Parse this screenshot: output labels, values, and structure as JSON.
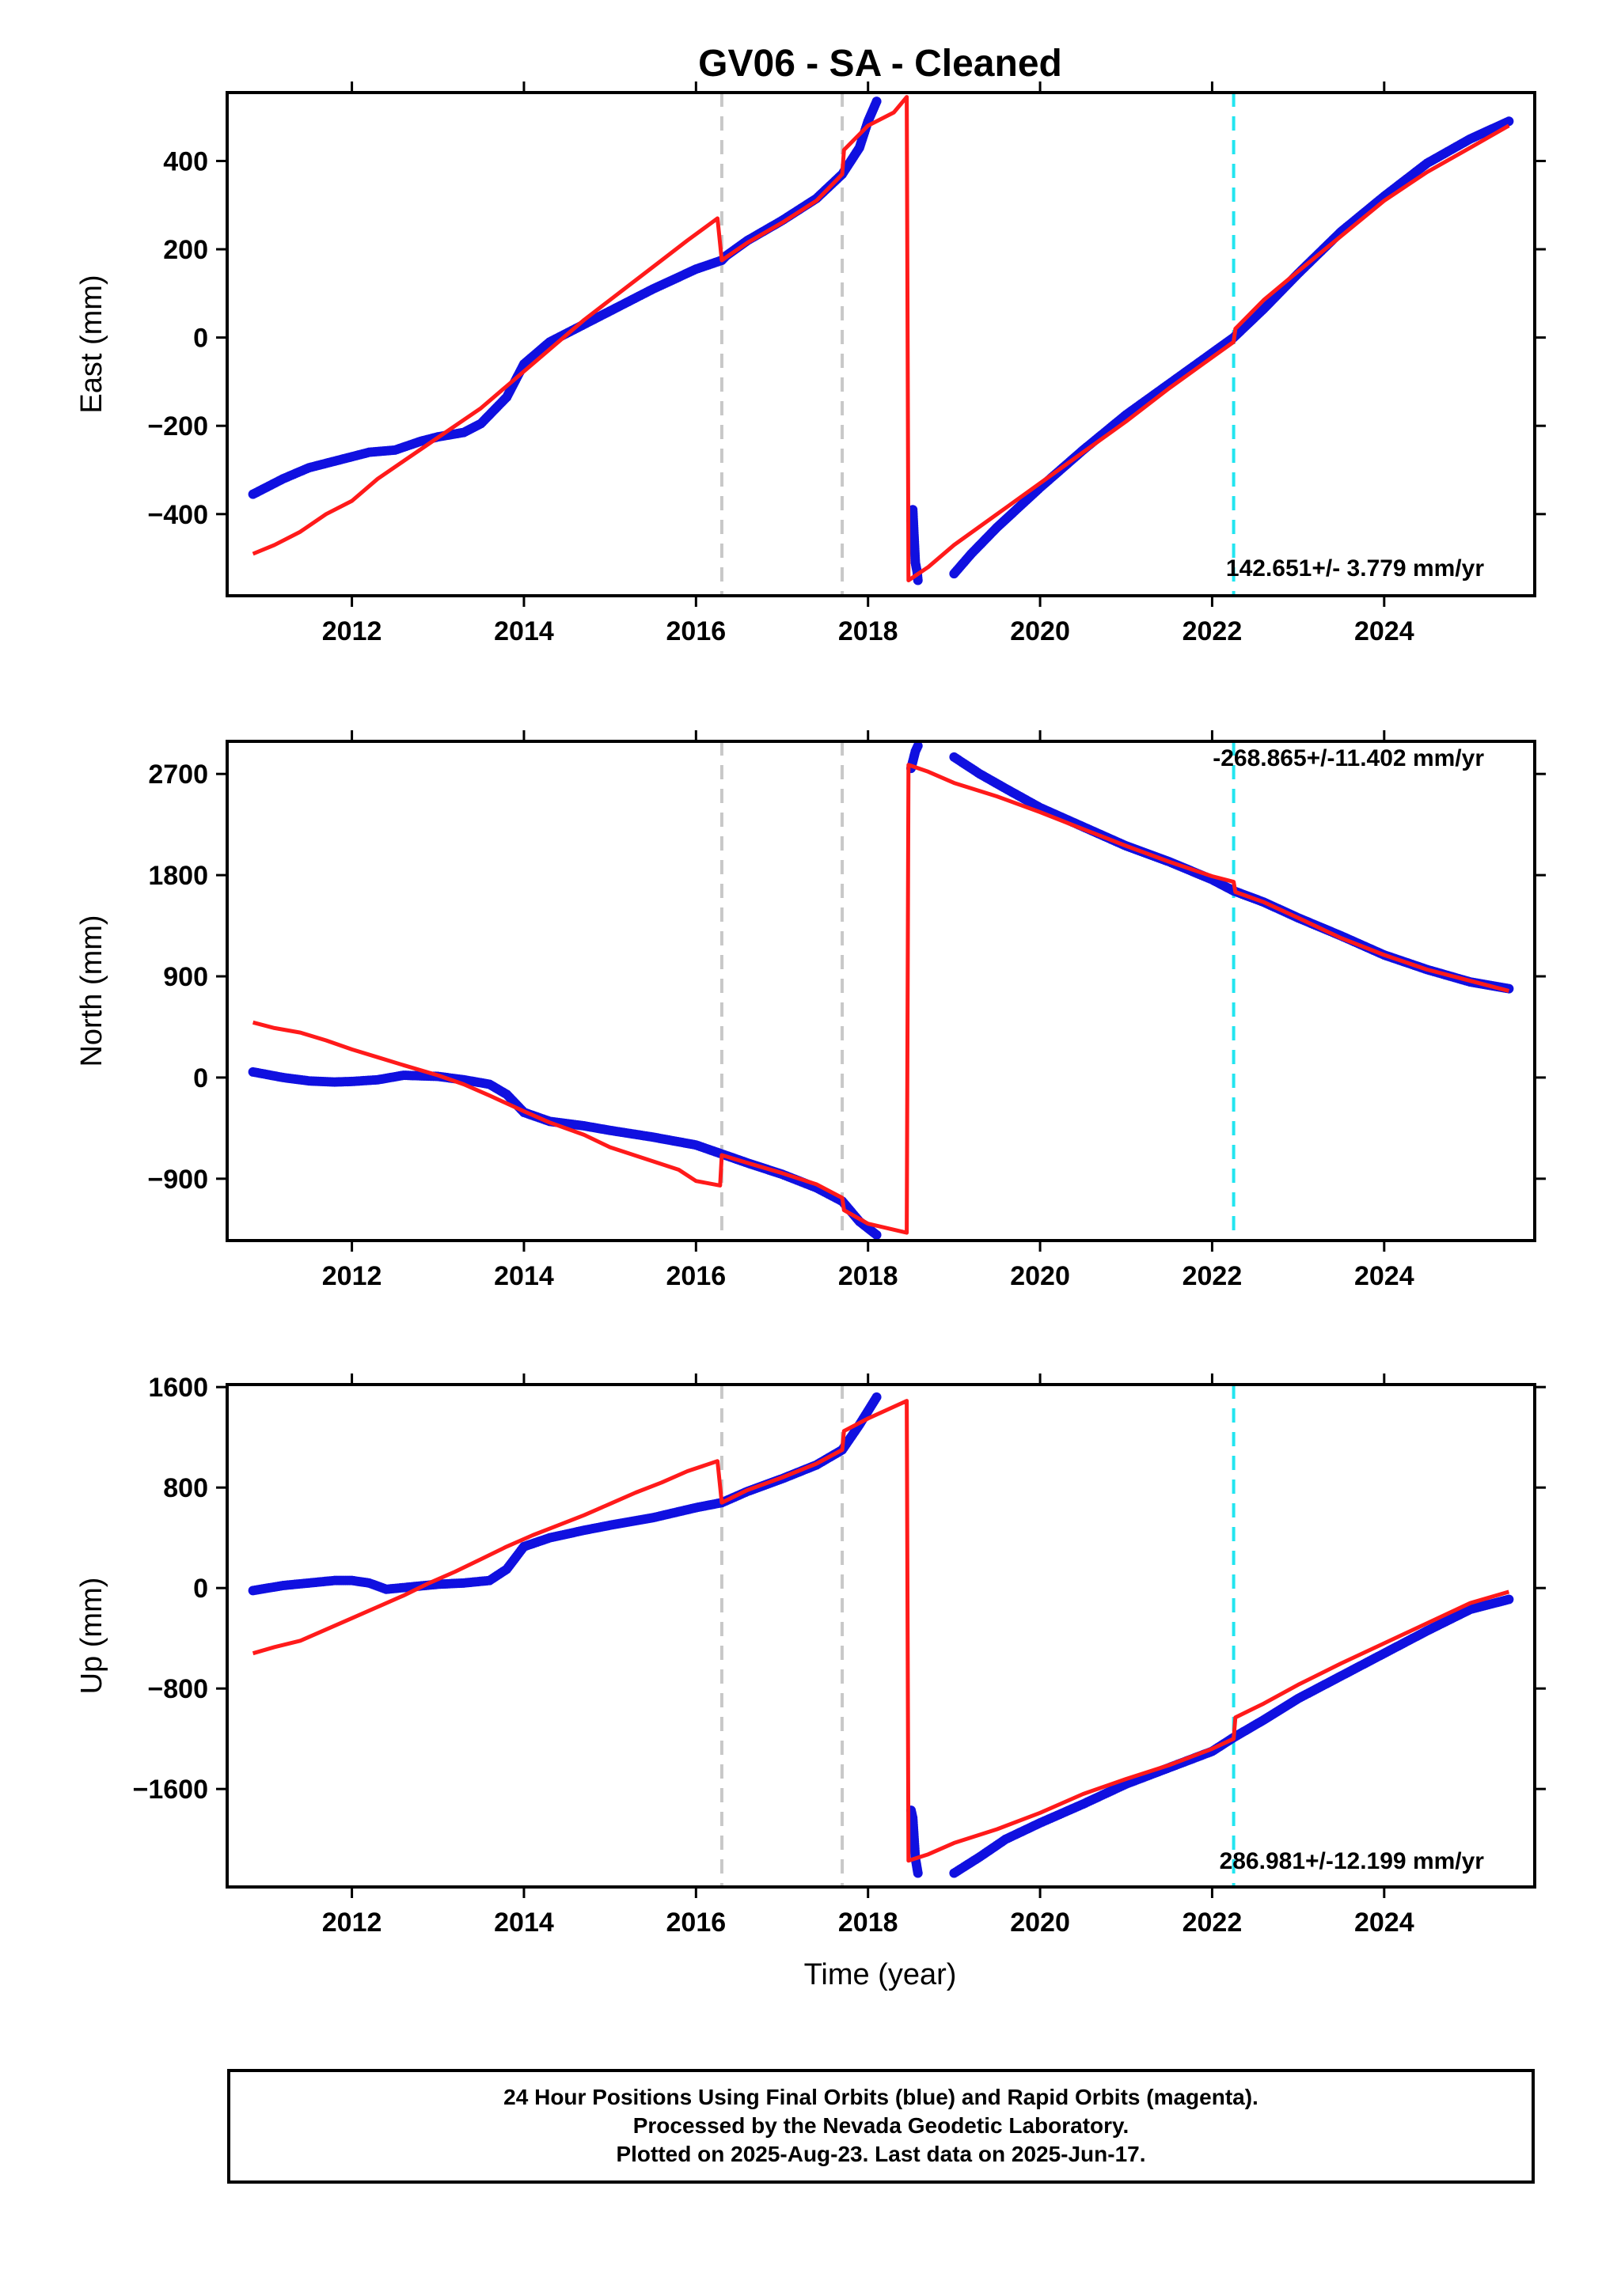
{
  "title": "GV06  - SA - Cleaned",
  "xlabel": "Time (year)",
  "footer": {
    "line1": "24 Hour Positions Using Final Orbits (blue) and Rapid Orbits (magenta).",
    "line2": "Processed by the Nevada Geodetic Laboratory.",
    "line3": "Plotted on 2025-Aug-23. Last data on 2025-Jun-17."
  },
  "colors": {
    "final_orbits": "#1010e0",
    "model": "#ff1a1a",
    "equipment_change": "#c8c8c8",
    "earthquake": "#22e5f0"
  },
  "chart_data": [
    {
      "type": "scatter",
      "panel": "east",
      "ylabel": "East (mm)",
      "xlim": [
        2010.55,
        2025.75
      ],
      "ylim": [
        -585,
        555
      ],
      "xticks": [
        2012,
        2014,
        2016,
        2018,
        2020,
        2022,
        2024
      ],
      "yticks": [
        -400,
        -200,
        0,
        200,
        400
      ],
      "rate_label": "142.651+/- 3.779 mm/yr",
      "vlines": {
        "equipment": [
          2016.3,
          2017.7
        ],
        "earthquake": [
          2022.25
        ]
      },
      "series": [
        {
          "role": "final_orbits",
          "x": [
            2010.85,
            2011.2,
            2011.5,
            2011.8,
            2012.0,
            2012.2,
            2012.5,
            2012.8,
            2013.0,
            2013.3,
            2013.5,
            2013.8,
            2014.0,
            2014.3,
            2014.7,
            2015.0,
            2015.5,
            2016.0,
            2016.3,
            2016.35,
            2016.6,
            2017.0,
            2017.4,
            2017.7,
            2017.9,
            2018.0,
            2018.1
          ],
          "y": [
            -355,
            -320,
            -295,
            -280,
            -270,
            -260,
            -255,
            -235,
            -225,
            -215,
            -195,
            -135,
            -60,
            -10,
            30,
            60,
            110,
            155,
            175,
            185,
            220,
            265,
            315,
            370,
            430,
            490,
            535
          ]
        },
        {
          "role": "final_orbits",
          "x": [
            2018.5,
            2018.52,
            2018.55,
            2018.57,
            2018.58
          ],
          "y": [
            -415,
            -390,
            -510,
            -530,
            -550
          ]
        },
        {
          "role": "final_orbits",
          "x": [
            2019.0,
            2019.2,
            2019.5,
            2020.0,
            2020.5,
            2021.0,
            2021.5,
            2022.0,
            2022.25,
            2022.6,
            2023.0,
            2023.5,
            2024.0,
            2024.5,
            2025.0,
            2025.45
          ],
          "y": [
            -535,
            -490,
            -430,
            -340,
            -255,
            -175,
            -105,
            -35,
            0,
            65,
            145,
            240,
            320,
            395,
            450,
            490
          ]
        }
      ],
      "model": {
        "x": [
          2010.85,
          2011.1,
          2011.4,
          2011.7,
          2012.0,
          2012.3,
          2012.6,
          2012.9,
          2013.2,
          2013.5,
          2013.8,
          2014.1,
          2014.4,
          2014.7,
          2015.0,
          2015.3,
          2015.6,
          2015.9,
          2016.25,
          2016.3,
          2016.6,
          2017.0,
          2017.4,
          2017.7,
          2017.72,
          2018.0,
          2018.3,
          2018.45,
          2018.47,
          2018.7,
          2019.0,
          2019.5,
          2020.0,
          2020.5,
          2021.0,
          2021.5,
          2022.0,
          2022.25,
          2022.27,
          2022.6,
          2023.0,
          2023.5,
          2024.0,
          2024.5,
          2025.0,
          2025.45
        ],
        "y": [
          -490,
          -470,
          -440,
          -400,
          -370,
          -320,
          -280,
          -240,
          -200,
          -160,
          -110,
          -60,
          -10,
          40,
          85,
          130,
          175,
          220,
          270,
          175,
          215,
          260,
          310,
          370,
          425,
          480,
          510,
          545,
          -550,
          -520,
          -470,
          -400,
          -330,
          -260,
          -190,
          -115,
          -45,
          -10,
          20,
          85,
          150,
          230,
          310,
          375,
          430,
          480
        ]
      }
    },
    {
      "type": "scatter",
      "panel": "north",
      "ylabel": "North (mm)",
      "xlim": [
        2010.55,
        2025.75
      ],
      "ylim": [
        -1450,
        2990
      ],
      "xticks": [
        2012,
        2014,
        2016,
        2018,
        2020,
        2022,
        2024
      ],
      "yticks": [
        -900,
        0,
        900,
        1800,
        2700
      ],
      "rate_label": "-268.865+/-11.402 mm/yr",
      "vlines": {
        "equipment": [
          2016.3,
          2017.7
        ],
        "earthquake": [
          2022.25
        ]
      },
      "series": [
        {
          "role": "final_orbits",
          "x": [
            2010.85,
            2011.2,
            2011.5,
            2011.8,
            2012.0,
            2012.3,
            2012.6,
            2013.0,
            2013.3,
            2013.6,
            2013.8,
            2014.0,
            2014.3,
            2014.7,
            2015.0,
            2015.5,
            2016.0,
            2016.3,
            2016.6,
            2017.0,
            2017.4,
            2017.7,
            2017.9,
            2018.1
          ],
          "y": [
            50,
            0,
            -30,
            -40,
            -35,
            -20,
            20,
            10,
            -20,
            -60,
            -150,
            -310,
            -390,
            -430,
            -470,
            -530,
            -600,
            -680,
            -760,
            -860,
            -980,
            -1100,
            -1280,
            -1400
          ]
        },
        {
          "role": "final_orbits",
          "x": [
            2018.5,
            2018.55,
            2018.58
          ],
          "y": [
            2750,
            2900,
            2950
          ]
        },
        {
          "role": "final_orbits",
          "x": [
            2019.0,
            2019.3,
            2019.6,
            2020.0,
            2020.5,
            2021.0,
            2021.5,
            2022.0,
            2022.25,
            2022.6,
            2023.0,
            2023.5,
            2024.0,
            2024.5,
            2025.0,
            2025.45
          ],
          "y": [
            2850,
            2700,
            2570,
            2400,
            2230,
            2060,
            1920,
            1760,
            1660,
            1560,
            1420,
            1260,
            1090,
            960,
            850,
            790
          ]
        }
      ],
      "model": {
        "x": [
          2010.85,
          2011.1,
          2011.4,
          2011.7,
          2012.0,
          2012.3,
          2012.6,
          2013.0,
          2013.3,
          2013.6,
          2014.0,
          2014.3,
          2014.7,
          2015.0,
          2015.4,
          2015.8,
          2016.0,
          2016.28,
          2016.3,
          2016.6,
          2017.0,
          2017.4,
          2017.7,
          2017.72,
          2018.0,
          2018.45,
          2018.47,
          2018.7,
          2019.0,
          2019.5,
          2020.0,
          2020.5,
          2021.0,
          2021.5,
          2022.0,
          2022.25,
          2022.27,
          2022.6,
          2023.0,
          2023.5,
          2024.0,
          2024.5,
          2025.0,
          2025.45
        ],
        "y": [
          490,
          440,
          400,
          330,
          250,
          180,
          110,
          20,
          -60,
          -160,
          -300,
          -400,
          -510,
          -620,
          -720,
          -820,
          -920,
          -960,
          -690,
          -760,
          -850,
          -950,
          -1070,
          -1180,
          -1300,
          -1380,
          2780,
          2720,
          2620,
          2500,
          2360,
          2210,
          2060,
          1920,
          1790,
          1740,
          1650,
          1560,
          1420,
          1240,
          1090,
          960,
          860,
          770
        ]
      }
    },
    {
      "type": "scatter",
      "panel": "up",
      "ylabel": "Up (mm)",
      "xlim": [
        2010.55,
        2025.75
      ],
      "ylim": [
        -2380,
        1620
      ],
      "xticks": [
        2012,
        2014,
        2016,
        2018,
        2020,
        2022,
        2024
      ],
      "yticks": [
        -1600,
        -800,
        0,
        800,
        1600
      ],
      "rate_label": "286.981+/-12.199 mm/yr",
      "vlines": {
        "equipment": [
          2016.3,
          2017.7
        ],
        "earthquake": [
          2022.25
        ]
      },
      "series": [
        {
          "role": "final_orbits",
          "x": [
            2010.85,
            2011.2,
            2011.5,
            2011.8,
            2012.0,
            2012.2,
            2012.4,
            2012.7,
            2013.0,
            2013.3,
            2013.6,
            2013.8,
            2014.0,
            2014.3,
            2014.7,
            2015.0,
            2015.5,
            2016.0,
            2016.3,
            2016.6,
            2017.0,
            2017.4,
            2017.7,
            2017.9,
            2018.1
          ],
          "y": [
            -20,
            20,
            40,
            60,
            60,
            40,
            -10,
            10,
            30,
            40,
            60,
            150,
            330,
            400,
            460,
            500,
            560,
            640,
            680,
            770,
            870,
            980,
            1100,
            1300,
            1520
          ]
        },
        {
          "role": "final_orbits",
          "x": [
            2018.5,
            2018.52,
            2018.55,
            2018.58
          ],
          "y": [
            -1770,
            -1830,
            -2150,
            -2270
          ]
        },
        {
          "role": "final_orbits",
          "x": [
            2019.0,
            2019.3,
            2019.6,
            2020.0,
            2020.5,
            2021.0,
            2021.5,
            2022.0,
            2022.25,
            2022.6,
            2023.0,
            2023.5,
            2024.0,
            2024.5,
            2025.0,
            2025.45
          ],
          "y": [
            -2270,
            -2140,
            -2000,
            -1870,
            -1720,
            -1560,
            -1430,
            -1300,
            -1190,
            -1050,
            -880,
            -700,
            -520,
            -340,
            -170,
            -90
          ]
        }
      ],
      "model": {
        "x": [
          2010.85,
          2011.1,
          2011.4,
          2011.7,
          2012.0,
          2012.3,
          2012.6,
          2012.9,
          2013.2,
          2013.5,
          2013.8,
          2014.1,
          2014.4,
          2014.7,
          2015.0,
          2015.3,
          2015.6,
          2015.9,
          2016.25,
          2016.3,
          2016.6,
          2017.0,
          2017.4,
          2017.7,
          2017.72,
          2018.0,
          2018.45,
          2018.47,
          2018.7,
          2019.0,
          2019.5,
          2020.0,
          2020.5,
          2021.0,
          2021.5,
          2022.0,
          2022.25,
          2022.27,
          2022.6,
          2023.0,
          2023.5,
          2024.0,
          2024.5,
          2025.0,
          2025.45
        ],
        "y": [
          -520,
          -470,
          -420,
          -330,
          -240,
          -150,
          -60,
          40,
          130,
          230,
          330,
          420,
          500,
          580,
          670,
          760,
          840,
          930,
          1010,
          680,
          780,
          880,
          990,
          1100,
          1250,
          1350,
          1490,
          -2170,
          -2120,
          -2030,
          -1920,
          -1790,
          -1640,
          -1520,
          -1410,
          -1280,
          -1200,
          -1030,
          -920,
          -770,
          -600,
          -440,
          -280,
          -120,
          -30
        ]
      }
    }
  ]
}
